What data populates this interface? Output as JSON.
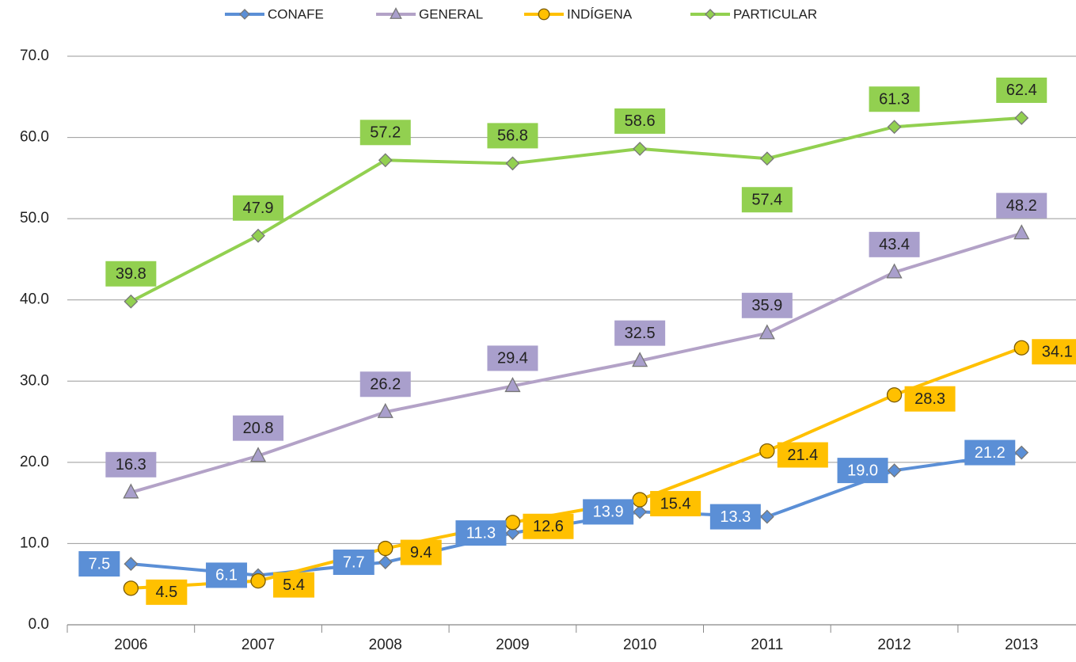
{
  "chart_data": {
    "type": "line",
    "categories": [
      "2006",
      "2007",
      "2008",
      "2009",
      "2010",
      "2011",
      "2012",
      "2013"
    ],
    "series": [
      {
        "name": "CONAFE",
        "color": "#5b8fd6",
        "marker": "diamond",
        "label_color": "#5b8fd6",
        "label_text_color": "#ffffff",
        "values": [
          7.5,
          6.1,
          7.7,
          11.3,
          13.9,
          13.3,
          19.0,
          21.2
        ],
        "value_labels": [
          "7.5",
          "6.1",
          "7.7",
          "11.3",
          "13.9",
          "13.3",
          "19.0",
          "21.2"
        ]
      },
      {
        "name": "GENERAL",
        "color": "#b3a2c7",
        "marker": "triangle",
        "label_color": "#a99fcc",
        "label_text_color": "#222222",
        "values": [
          16.3,
          20.8,
          26.2,
          29.4,
          32.5,
          35.9,
          43.4,
          48.2
        ],
        "value_labels": [
          "16.3",
          "20.8",
          "26.2",
          "29.4",
          "32.5",
          "35.9",
          "43.4",
          "48.2"
        ]
      },
      {
        "name": "INDÍGENA",
        "color": "#ffc000",
        "marker": "circle",
        "label_color": "#ffc000",
        "label_text_color": "#222222",
        "values": [
          4.5,
          5.4,
          9.4,
          12.6,
          15.4,
          21.4,
          28.3,
          34.1
        ],
        "value_labels": [
          "4.5",
          "5.4",
          "9.4",
          "12.6",
          "15.4",
          "21.4",
          "28.3",
          "34.1"
        ]
      },
      {
        "name": "PARTICULAR",
        "color": "#92d050",
        "marker": "diamond",
        "label_color": "#92d050",
        "label_text_color": "#222222",
        "values": [
          39.8,
          47.9,
          57.2,
          56.8,
          58.6,
          57.4,
          61.3,
          62.4
        ],
        "value_labels": [
          "39.8",
          "47.9",
          "57.2",
          "56.8",
          "58.6",
          "57.4",
          "61.3",
          "62.4"
        ]
      }
    ],
    "ylim": [
      0,
      70
    ],
    "yticks": [
      {
        "value": 0,
        "label": "0.0"
      },
      {
        "value": 10,
        "label": "10.0"
      },
      {
        "value": 20,
        "label": "20.0"
      },
      {
        "value": 30,
        "label": "30.0"
      },
      {
        "value": 40,
        "label": "40.0"
      },
      {
        "value": 50,
        "label": "50.0"
      },
      {
        "value": 60,
        "label": "60.0"
      },
      {
        "value": 70,
        "label": "70.0"
      }
    ],
    "grid": true,
    "legend": "top"
  }
}
